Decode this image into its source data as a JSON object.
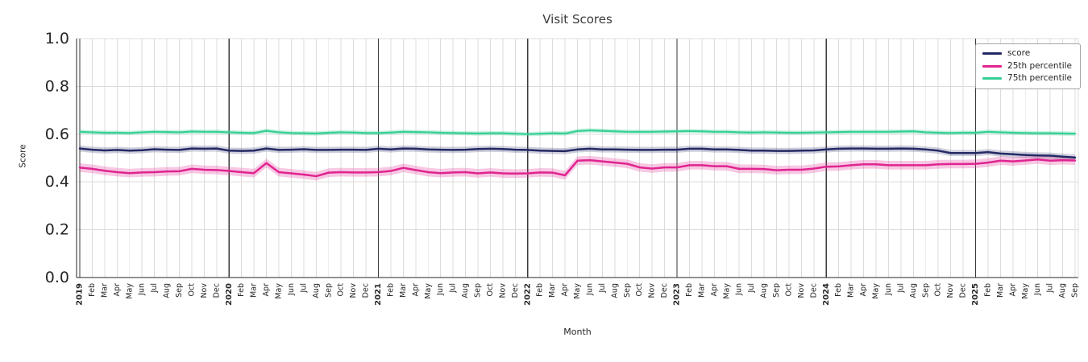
{
  "chart_data": {
    "type": "line",
    "title": "Visit Scores",
    "xlabel": "Month",
    "ylabel": "Score",
    "ylim": [
      0.0,
      1.0
    ],
    "yticks": [
      0.0,
      0.2,
      0.4,
      0.6,
      0.8,
      1.0
    ],
    "grid": true,
    "legend_position": "upper right",
    "x_labels": [
      "2019",
      "Feb",
      "Mar",
      "Apr",
      "May",
      "Jun",
      "Jul",
      "Aug",
      "Sep",
      "Oct",
      "Nov",
      "Dec",
      "2020",
      "Feb",
      "Mar",
      "Apr",
      "May",
      "Jun",
      "Jul",
      "Aug",
      "Sep",
      "Oct",
      "Nov",
      "Dec",
      "2021",
      "Feb",
      "Mar",
      "Apr",
      "May",
      "Jun",
      "Jul",
      "Aug",
      "Sep",
      "Oct",
      "Nov",
      "Dec",
      "2022",
      "Feb",
      "Mar",
      "Apr",
      "May",
      "Jun",
      "Jul",
      "Aug",
      "Sep",
      "Oct",
      "Nov",
      "Dec",
      "2023",
      "Feb",
      "Mar",
      "Apr",
      "May",
      "Jun",
      "Jul",
      "Aug",
      "Sep",
      "Oct",
      "Nov",
      "Dec",
      "2024",
      "Feb",
      "Mar",
      "Apr",
      "May",
      "Jun",
      "Jul",
      "Aug",
      "Sep",
      "Oct",
      "Nov",
      "Dec",
      "2025",
      "Feb",
      "Mar",
      "Apr",
      "May",
      "Jun",
      "Jul",
      "Aug",
      "Sep"
    ],
    "series": [
      {
        "name": "score",
        "color": "#242a64",
        "band": 0.013,
        "band_opacity": 0.22,
        "line_width": 2.5,
        "values": [
          0.54,
          0.535,
          0.532,
          0.534,
          0.531,
          0.533,
          0.537,
          0.535,
          0.534,
          0.54,
          0.539,
          0.54,
          0.531,
          0.53,
          0.531,
          0.54,
          0.534,
          0.535,
          0.537,
          0.534,
          0.534,
          0.535,
          0.535,
          0.534,
          0.539,
          0.536,
          0.54,
          0.539,
          0.536,
          0.535,
          0.534,
          0.535,
          0.538,
          0.539,
          0.538,
          0.535,
          0.534,
          0.531,
          0.53,
          0.529,
          0.536,
          0.539,
          0.536,
          0.536,
          0.535,
          0.534,
          0.534,
          0.535,
          0.535,
          0.539,
          0.539,
          0.536,
          0.536,
          0.534,
          0.531,
          0.531,
          0.53,
          0.53,
          0.531,
          0.532,
          0.536,
          0.539,
          0.54,
          0.54,
          0.539,
          0.539,
          0.54,
          0.539,
          0.536,
          0.531,
          0.521,
          0.521,
          0.521,
          0.525,
          0.519,
          0.516,
          0.513,
          0.511,
          0.51,
          0.506,
          0.502
        ]
      },
      {
        "name": "25th percentile",
        "color": "#e02490",
        "band": 0.018,
        "band_opacity": 0.25,
        "line_width": 2.5,
        "values": [
          0.46,
          0.455,
          0.447,
          0.441,
          0.437,
          0.44,
          0.441,
          0.444,
          0.445,
          0.455,
          0.451,
          0.45,
          0.446,
          0.441,
          0.437,
          0.479,
          0.441,
          0.436,
          0.431,
          0.424,
          0.439,
          0.441,
          0.44,
          0.44,
          0.441,
          0.446,
          0.459,
          0.45,
          0.441,
          0.437,
          0.44,
          0.441,
          0.436,
          0.44,
          0.436,
          0.435,
          0.436,
          0.44,
          0.439,
          0.428,
          0.489,
          0.491,
          0.486,
          0.481,
          0.476,
          0.461,
          0.456,
          0.461,
          0.461,
          0.47,
          0.47,
          0.466,
          0.466,
          0.455,
          0.455,
          0.454,
          0.449,
          0.451,
          0.451,
          0.456,
          0.464,
          0.465,
          0.47,
          0.474,
          0.474,
          0.47,
          0.47,
          0.47,
          0.47,
          0.474,
          0.475,
          0.475,
          0.476,
          0.481,
          0.489,
          0.486,
          0.49,
          0.494,
          0.489,
          0.491,
          0.49
        ]
      },
      {
        "name": "75th percentile",
        "color": "#35cf92",
        "band": 0.009,
        "band_opacity": 0.28,
        "line_width": 2.2,
        "values": [
          0.61,
          0.608,
          0.606,
          0.606,
          0.605,
          0.608,
          0.61,
          0.609,
          0.608,
          0.611,
          0.61,
          0.61,
          0.608,
          0.606,
          0.605,
          0.614,
          0.608,
          0.605,
          0.604,
          0.603,
          0.606,
          0.608,
          0.607,
          0.605,
          0.605,
          0.607,
          0.61,
          0.609,
          0.608,
          0.606,
          0.605,
          0.604,
          0.603,
          0.604,
          0.604,
          0.602,
          0.6,
          0.602,
          0.604,
          0.603,
          0.613,
          0.616,
          0.614,
          0.612,
          0.61,
          0.61,
          0.61,
          0.611,
          0.612,
          0.613,
          0.612,
          0.61,
          0.61,
          0.608,
          0.607,
          0.608,
          0.607,
          0.606,
          0.606,
          0.607,
          0.608,
          0.609,
          0.61,
          0.61,
          0.61,
          0.61,
          0.611,
          0.612,
          0.608,
          0.606,
          0.605,
          0.606,
          0.606,
          0.61,
          0.608,
          0.606,
          0.605,
          0.604,
          0.604,
          0.603,
          0.602
        ]
      }
    ],
    "style": {
      "grid_color": "#dcdcdc",
      "year_line_color": "#3a3a3a",
      "spine_color": "#262626",
      "tick_color": "#262626"
    }
  }
}
